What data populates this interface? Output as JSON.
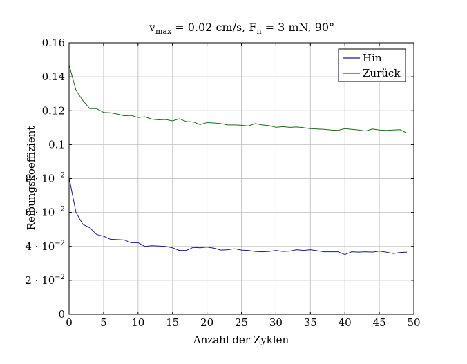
{
  "chart_data": {
    "type": "line",
    "title_main": "v",
    "title_sub1": "max",
    "title_mid": " = 0.02 cm/s, F",
    "title_sub2": "n",
    "title_end": " = 3 mN, 90°",
    "xlabel": "Anzahl der Zyklen",
    "ylabel": "Reibungskoeffizient",
    "xlim": [
      0,
      50
    ],
    "ylim": [
      0,
      0.16
    ],
    "grid": true,
    "legend_position": "top-right",
    "x_ticks": [
      0,
      5,
      10,
      15,
      20,
      25,
      30,
      35,
      40,
      45,
      50
    ],
    "x_tick_labels": [
      "0",
      "5",
      "10",
      "15",
      "20",
      "25",
      "30",
      "35",
      "40",
      "45",
      "50"
    ],
    "y_ticks": [
      0,
      0.02,
      0.04,
      0.06,
      0.08,
      0.1,
      0.12,
      0.14,
      0.16
    ],
    "y_tick_labels": [
      {
        "base": "0",
        "exp": ""
      },
      {
        "base": "2 · 10",
        "exp": "−2"
      },
      {
        "base": "4 · 10",
        "exp": "−2"
      },
      {
        "base": "6 · 10",
        "exp": "−2"
      },
      {
        "base": "8 · 10",
        "exp": "−2"
      },
      {
        "base": "0.1",
        "exp": ""
      },
      {
        "base": "0.12",
        "exp": ""
      },
      {
        "base": "0.14",
        "exp": ""
      },
      {
        "base": "0.16",
        "exp": ""
      }
    ],
    "x": [
      0,
      1,
      2,
      3,
      4,
      5,
      6,
      7,
      8,
      9,
      10,
      11,
      12,
      13,
      14,
      15,
      16,
      17,
      18,
      19,
      20,
      21,
      22,
      23,
      24,
      25,
      26,
      27,
      28,
      29,
      30,
      31,
      32,
      33,
      34,
      35,
      36,
      37,
      38,
      39,
      40,
      41,
      42,
      43,
      44,
      45,
      46,
      47,
      48,
      49
    ],
    "series": [
      {
        "name": "Hin",
        "color": "#1a1a8c",
        "values": [
          0.0805,
          0.06,
          0.053,
          0.051,
          0.047,
          0.046,
          0.0442,
          0.044,
          0.0438,
          0.0422,
          0.0422,
          0.04,
          0.0404,
          0.0402,
          0.04,
          0.0392,
          0.0376,
          0.0376,
          0.0394,
          0.0392,
          0.0396,
          0.039,
          0.0378,
          0.038,
          0.0386,
          0.0378,
          0.0376,
          0.037,
          0.0368,
          0.037,
          0.0376,
          0.037,
          0.0372,
          0.038,
          0.0376,
          0.038,
          0.0374,
          0.0368,
          0.0368,
          0.0368,
          0.0352,
          0.0368,
          0.0366,
          0.0368,
          0.0366,
          0.0372,
          0.0366,
          0.0358,
          0.0364,
          0.0366
        ]
      },
      {
        "name": "Zurück",
        "color": "#1a6b1a",
        "values": [
          0.147,
          0.132,
          0.126,
          0.1212,
          0.1212,
          0.119,
          0.1188,
          0.118,
          0.117,
          0.1172,
          0.116,
          0.1164,
          0.115,
          0.1146,
          0.1148,
          0.114,
          0.1152,
          0.1136,
          0.1134,
          0.1118,
          0.113,
          0.1128,
          0.1124,
          0.1116,
          0.1116,
          0.1114,
          0.111,
          0.1124,
          0.1116,
          0.1112,
          0.1102,
          0.1106,
          0.1102,
          0.1104,
          0.11,
          0.1094,
          0.1092,
          0.109,
          0.1086,
          0.1084,
          0.1094,
          0.109,
          0.1086,
          0.108,
          0.1092,
          0.1086,
          0.1084,
          0.1086,
          0.1088,
          0.1068
        ]
      }
    ]
  }
}
